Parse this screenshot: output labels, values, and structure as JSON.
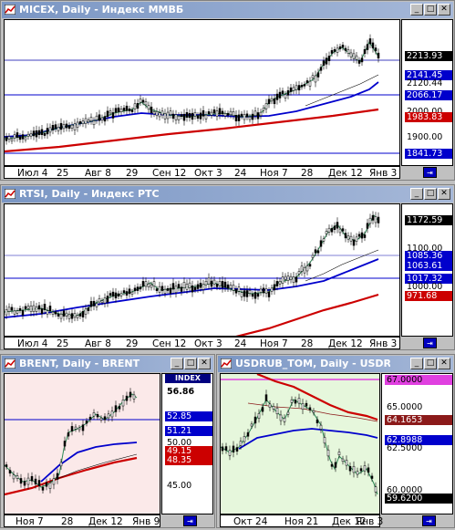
{
  "colors": {
    "green": "#2e8b57",
    "blue": "#0000cc",
    "red": "#cc0000",
    "trend": "#0000aa"
  },
  "windows": [
    {
      "title": "MICEX, Daily - Индекс ММВБ",
      "plot_bg": "#ffffff",
      "axis_labels": [
        {
          "text": "2213.93",
          "bg": "#000000",
          "fg": "#ffffff"
        },
        {
          "text": "2141.45",
          "bg": "#0000cc",
          "fg": "#ffffff"
        },
        {
          "text": "2120.44",
          "bg": "#ffffff",
          "fg": "#000000"
        },
        {
          "text": "2066.17",
          "bg": "#0000cc",
          "fg": "#ffffff"
        },
        {
          "text": "2000.00",
          "bg": "#ffffff",
          "fg": "#000000"
        },
        {
          "text": "1983.83",
          "bg": "#cc0000",
          "fg": "#ffffff"
        },
        {
          "text": "1900.00",
          "bg": "#ffffff",
          "fg": "#000000"
        },
        {
          "text": "1841.73",
          "bg": "#0000cc",
          "fg": "#ffffff"
        }
      ],
      "x_labels": [
        "Июл 4",
        "25",
        "Авг 8",
        "29",
        "Сен 12",
        "Окт 3",
        "24",
        "Ноя 7",
        "28",
        "Дек 12",
        "Янв 3"
      ]
    },
    {
      "title": "RTSI, Daily - Индекс РТС",
      "plot_bg": "#ffffff",
      "axis_labels": [
        {
          "text": "1172.59",
          "bg": "#000000",
          "fg": "#ffffff"
        },
        {
          "text": "1100.00",
          "bg": "#ffffff",
          "fg": "#000000"
        },
        {
          "text": "1085.36",
          "bg": "#0000cc",
          "fg": "#ffffff"
        },
        {
          "text": "1063.61",
          "bg": "#0000cc",
          "fg": "#ffffff"
        },
        {
          "text": "1017.32",
          "bg": "#0000cc",
          "fg": "#ffffff"
        },
        {
          "text": "1000.00",
          "bg": "#ffffff",
          "fg": "#000000"
        },
        {
          "text": "971.68",
          "bg": "#cc0000",
          "fg": "#ffffff"
        }
      ],
      "x_labels": [
        "Июл 4",
        "25",
        "Авг 8",
        "29",
        "Сен 12",
        "Окт 3",
        "24",
        "Ноя 7",
        "28",
        "Дек 12",
        "Янв 3"
      ]
    },
    {
      "title": "BRENT, Daily - BRENT",
      "plot_bg": "#fbe9e9",
      "badge": "INDEX",
      "axis_labels": [
        {
          "text": "56.86",
          "bg": "#ffffff",
          "fg": "#000000"
        },
        {
          "text": "52.85",
          "bg": "#0000cc",
          "fg": "#ffffff"
        },
        {
          "text": "51.21",
          "bg": "#0000cc",
          "fg": "#ffffff"
        },
        {
          "text": "50.00",
          "bg": "#ffffff",
          "fg": "#000000"
        },
        {
          "text": "49.15",
          "bg": "#cc0000",
          "fg": "#ffffff"
        },
        {
          "text": "48.35",
          "bg": "#cc0000",
          "fg": "#ffffff"
        },
        {
          "text": "45.00",
          "bg": "#ffffff",
          "fg": "#000000"
        }
      ],
      "x_labels": [
        "Ноя 7",
        "28",
        "Дек 12",
        "Янв 9"
      ]
    },
    {
      "title": "USDRUB_TOM, Daily - USDRUB",
      "plot_bg": "#e6f7dc",
      "axis_labels": [
        {
          "text": "67.0000",
          "bg": "#e040e0",
          "fg": "#000000"
        },
        {
          "text": "65.0000",
          "bg": "#ffffff",
          "fg": "#000000"
        },
        {
          "text": "64.1653",
          "bg": "#8b1a1a",
          "fg": "#ffffff"
        },
        {
          "text": "62.8988",
          "bg": "#0000cc",
          "fg": "#ffffff"
        },
        {
          "text": "62.5000",
          "bg": "#ffffff",
          "fg": "#000000"
        },
        {
          "text": "60.0000",
          "bg": "#ffffff",
          "fg": "#000000"
        },
        {
          "text": "59.6200",
          "bg": "#000000",
          "fg": "#ffffff"
        }
      ],
      "x_labels": [
        "Окт 24",
        "Ноя 21",
        "Дек 12",
        "Янв 3"
      ]
    }
  ]
}
